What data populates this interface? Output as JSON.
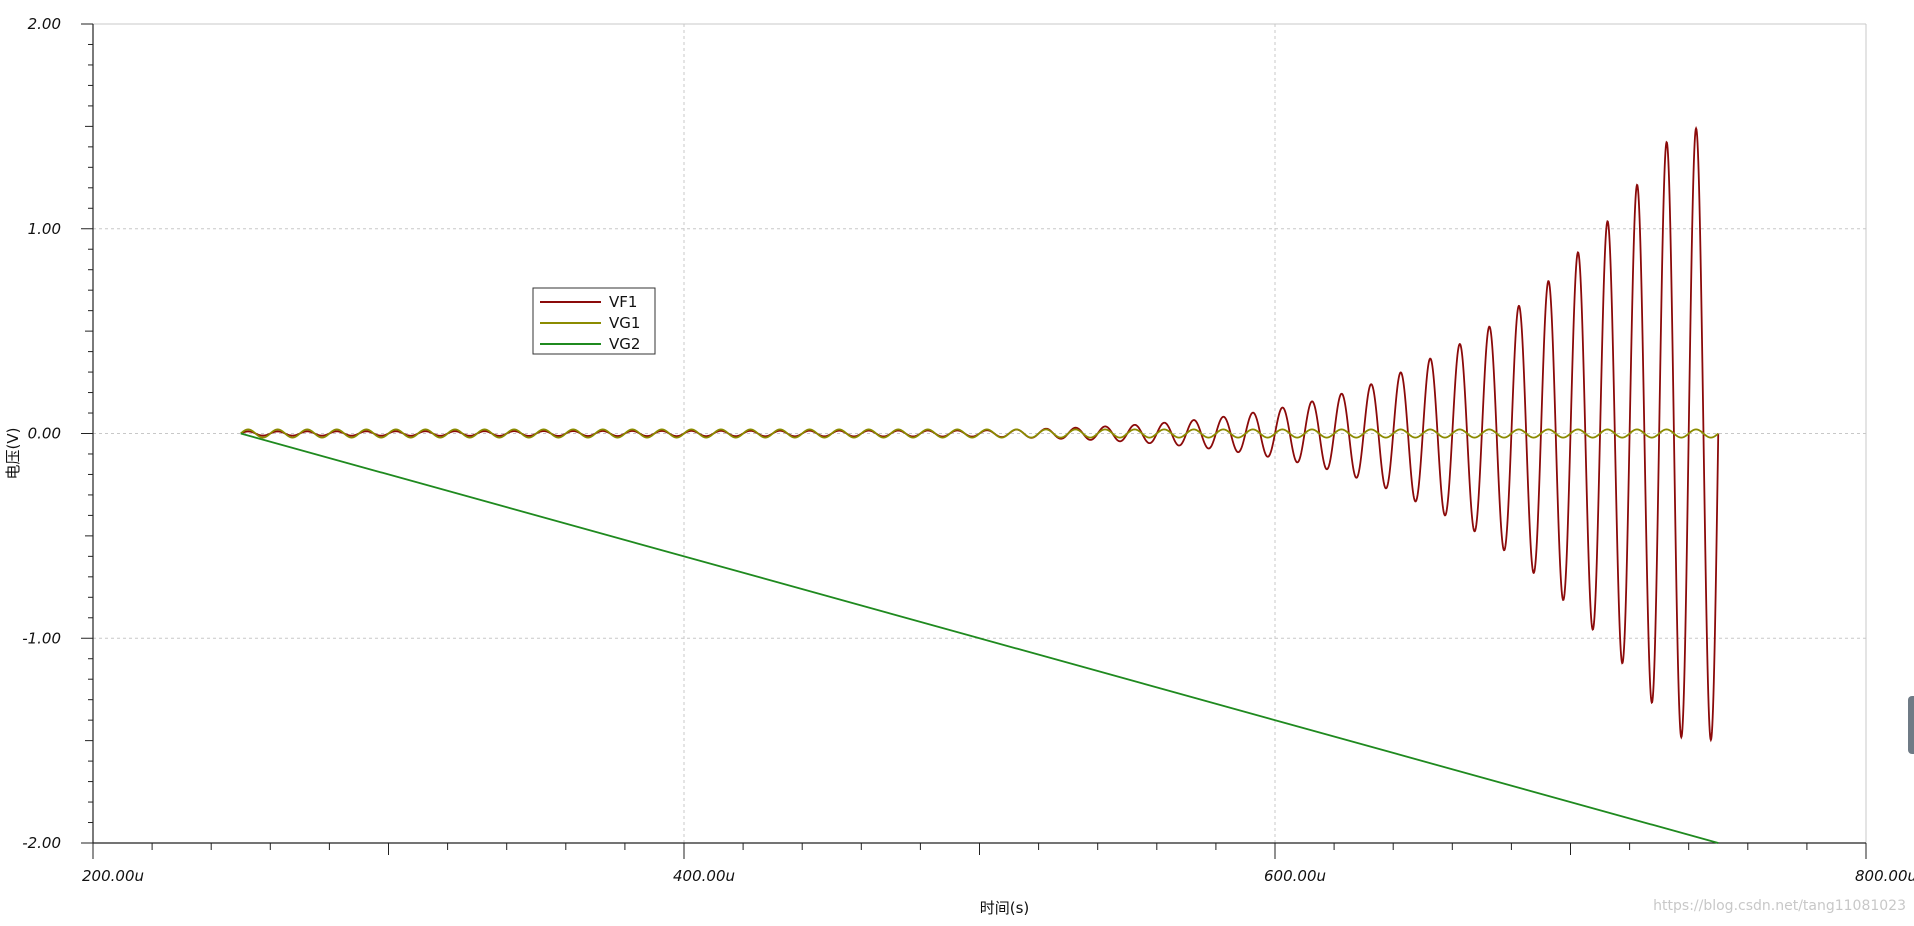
{
  "chart_data": {
    "type": "line",
    "title": "",
    "xlabel": "时间(s)",
    "ylabel": "电压(V)",
    "xlim": [
      0.0002,
      0.0008
    ],
    "ylim": [
      -2,
      2
    ],
    "x_ticks": [
      "200.00u",
      "400.00u",
      "600.00u",
      "800.00u"
    ],
    "y_ticks": [
      "2.00",
      "1.00",
      "0.00",
      "-1.00",
      "-2.00"
    ],
    "grid": true,
    "legend": {
      "placement": "upper-left",
      "entries": [
        "VF1",
        "VG1",
        "VG2"
      ]
    },
    "series": [
      {
        "name": "VF1",
        "color": "#8b0a0a",
        "kind": "growing-oscillation",
        "x_start": 0.00025,
        "x_end": 0.00075,
        "period": 1e-05,
        "amplitude_points": [
          [
            0.00025,
            0.01
          ],
          [
            0.0005,
            0.015
          ],
          [
            0.00055,
            0.04
          ],
          [
            0.0006,
            0.12
          ],
          [
            0.00065,
            0.35
          ],
          [
            0.0007,
            0.85
          ],
          [
            0.000735,
            1.48
          ],
          [
            0.00075,
            1.5
          ]
        ]
      },
      {
        "name": "VG1",
        "color": "#8b8b00",
        "kind": "oscillation",
        "x_start": 0.00025,
        "x_end": 0.00075,
        "period": 1e-05,
        "amplitude": 0.02
      },
      {
        "name": "VG2",
        "color": "#1f8a1f",
        "kind": "ramp",
        "x": [
          0.00025,
          0.00075
        ],
        "y": [
          0.0,
          -2.0
        ]
      }
    ]
  },
  "watermark": "https://blog.csdn.net/tang11081023"
}
